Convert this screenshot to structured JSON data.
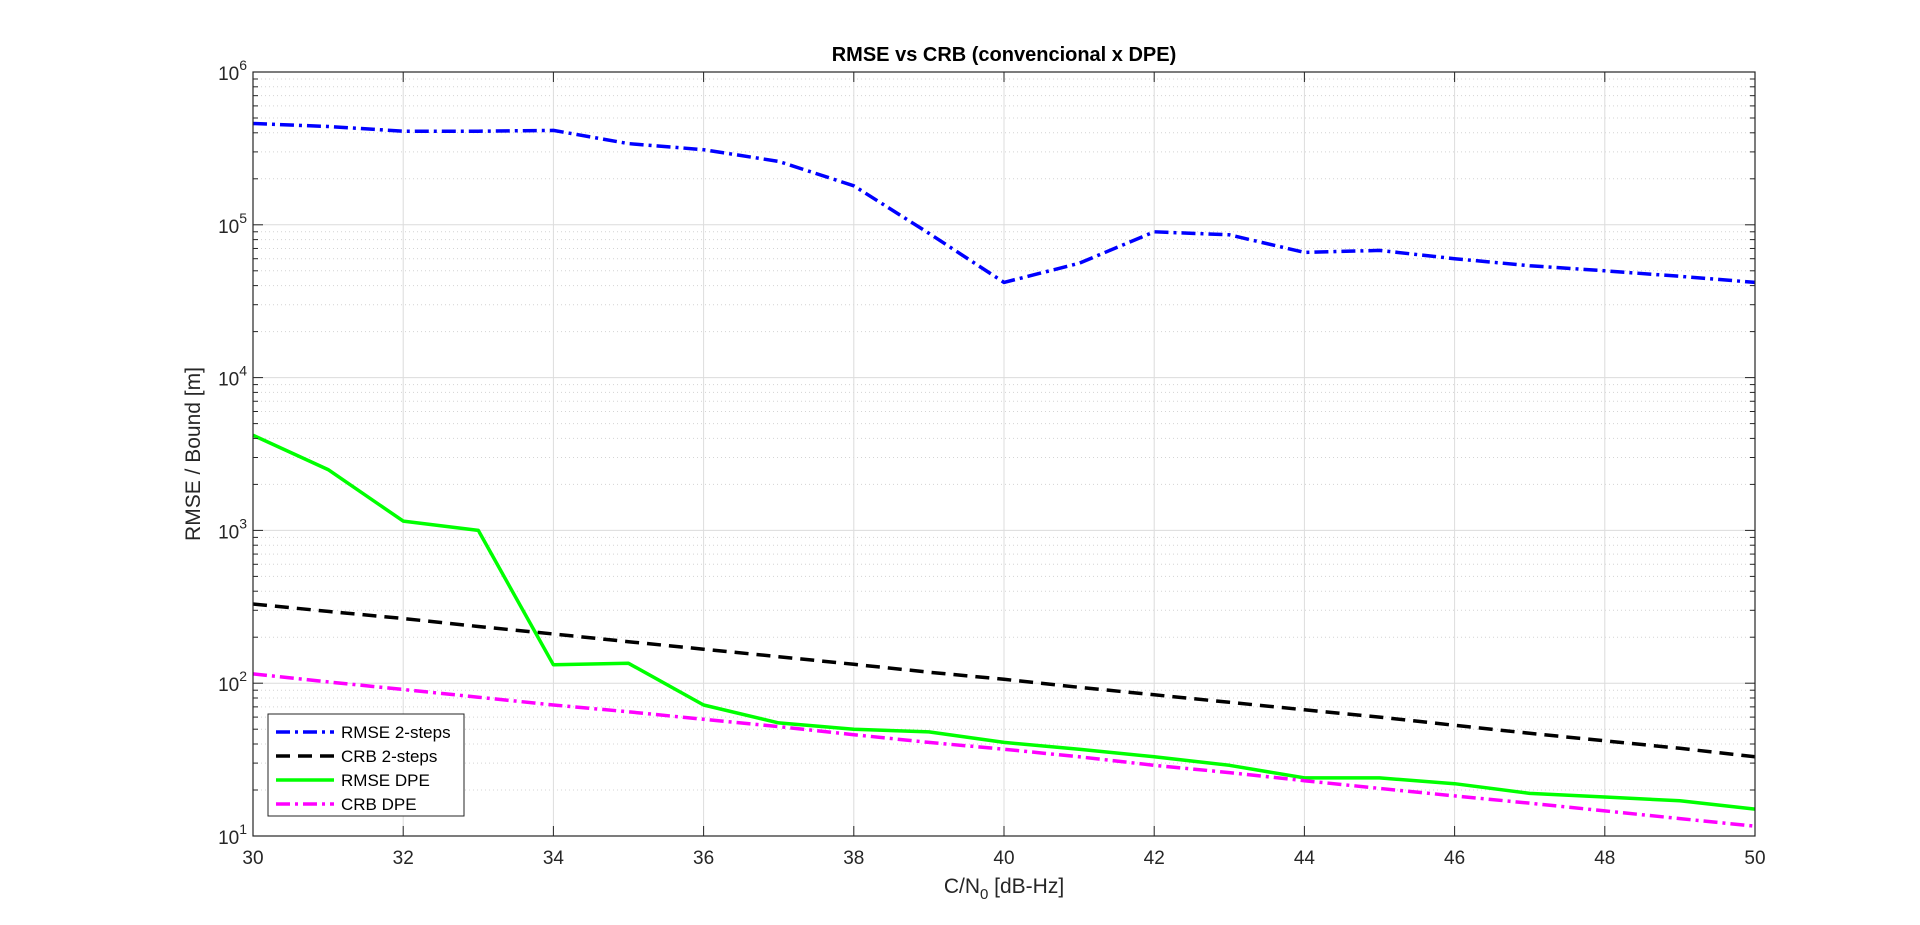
{
  "chart_data": {
    "type": "line",
    "title": "RMSE vs CRB (convencional x DPE)",
    "xlabel": {
      "main": "C/N",
      "sub": "0",
      "rest": " [dB-Hz]"
    },
    "ylabel": "RMSE / Bound [m]",
    "xlim": [
      30,
      50
    ],
    "ylim": [
      10,
      1000000
    ],
    "yscale": "log",
    "grid": true,
    "minor_grid": true,
    "legend_position": "bottom-left",
    "x_ticks": [
      30,
      32,
      34,
      36,
      38,
      40,
      42,
      44,
      46,
      48,
      50
    ],
    "y_ticks": [
      {
        "value": 10,
        "base": "10",
        "exp": "1"
      },
      {
        "value": 100,
        "base": "10",
        "exp": "2"
      },
      {
        "value": 1000,
        "base": "10",
        "exp": "3"
      },
      {
        "value": 10000,
        "base": "10",
        "exp": "4"
      },
      {
        "value": 100000,
        "base": "10",
        "exp": "5"
      },
      {
        "value": 1000000,
        "base": "10",
        "exp": "6"
      }
    ],
    "series": [
      {
        "name": "RMSE 2-steps",
        "color": "#0000FF",
        "dash": "14,5,3,5",
        "width": 3.5,
        "x": [
          30,
          31,
          32,
          33,
          34,
          35,
          36,
          37,
          38,
          39,
          40,
          41,
          42,
          43,
          44,
          45,
          46,
          47,
          48,
          49,
          50
        ],
        "y": [
          460000,
          440000,
          410000,
          410000,
          415000,
          340000,
          310000,
          260000,
          180000,
          88000,
          42000,
          56000,
          90000,
          86000,
          66000,
          68000,
          60000,
          54000,
          50000,
          46000,
          42000
        ]
      },
      {
        "name": "CRB 2-steps",
        "color": "#000000",
        "dash": "14,8",
        "width": 3.5,
        "x": [
          30,
          31,
          32,
          33,
          34,
          35,
          36,
          37,
          38,
          39,
          40,
          41,
          42,
          43,
          44,
          45,
          46,
          47,
          48,
          49,
          50
        ],
        "y": [
          330,
          295,
          265,
          235,
          210,
          187,
          167,
          149,
          133,
          118,
          106,
          94,
          84,
          75,
          67,
          60,
          53,
          47,
          42,
          37.5,
          33
        ]
      },
      {
        "name": "RMSE DPE",
        "color": "#00FF00",
        "dash": "",
        "width": 3.5,
        "x": [
          30,
          31,
          32,
          33,
          34,
          35,
          36,
          37,
          38,
          39,
          40,
          41,
          42,
          43,
          44,
          45,
          46,
          47,
          48,
          49,
          50
        ],
        "y": [
          4200,
          2500,
          1150,
          1000,
          132,
          135,
          72,
          55,
          50,
          48,
          41,
          37,
          33,
          29,
          24,
          24,
          22,
          19,
          18,
          17,
          15
        ]
      },
      {
        "name": "CRB DPE",
        "color": "#FF00FF",
        "dash": "14,5,3,5",
        "width": 3.5,
        "x": [
          30,
          31,
          32,
          33,
          34,
          35,
          36,
          37,
          38,
          39,
          40,
          41,
          42,
          43,
          44,
          45,
          46,
          47,
          48,
          49,
          50
        ],
        "y": [
          115,
          102,
          91,
          81,
          72,
          65,
          58,
          52,
          46,
          41,
          37,
          33,
          29,
          26,
          23,
          20.5,
          18.3,
          16.4,
          14.6,
          13,
          11.6
        ]
      }
    ]
  }
}
